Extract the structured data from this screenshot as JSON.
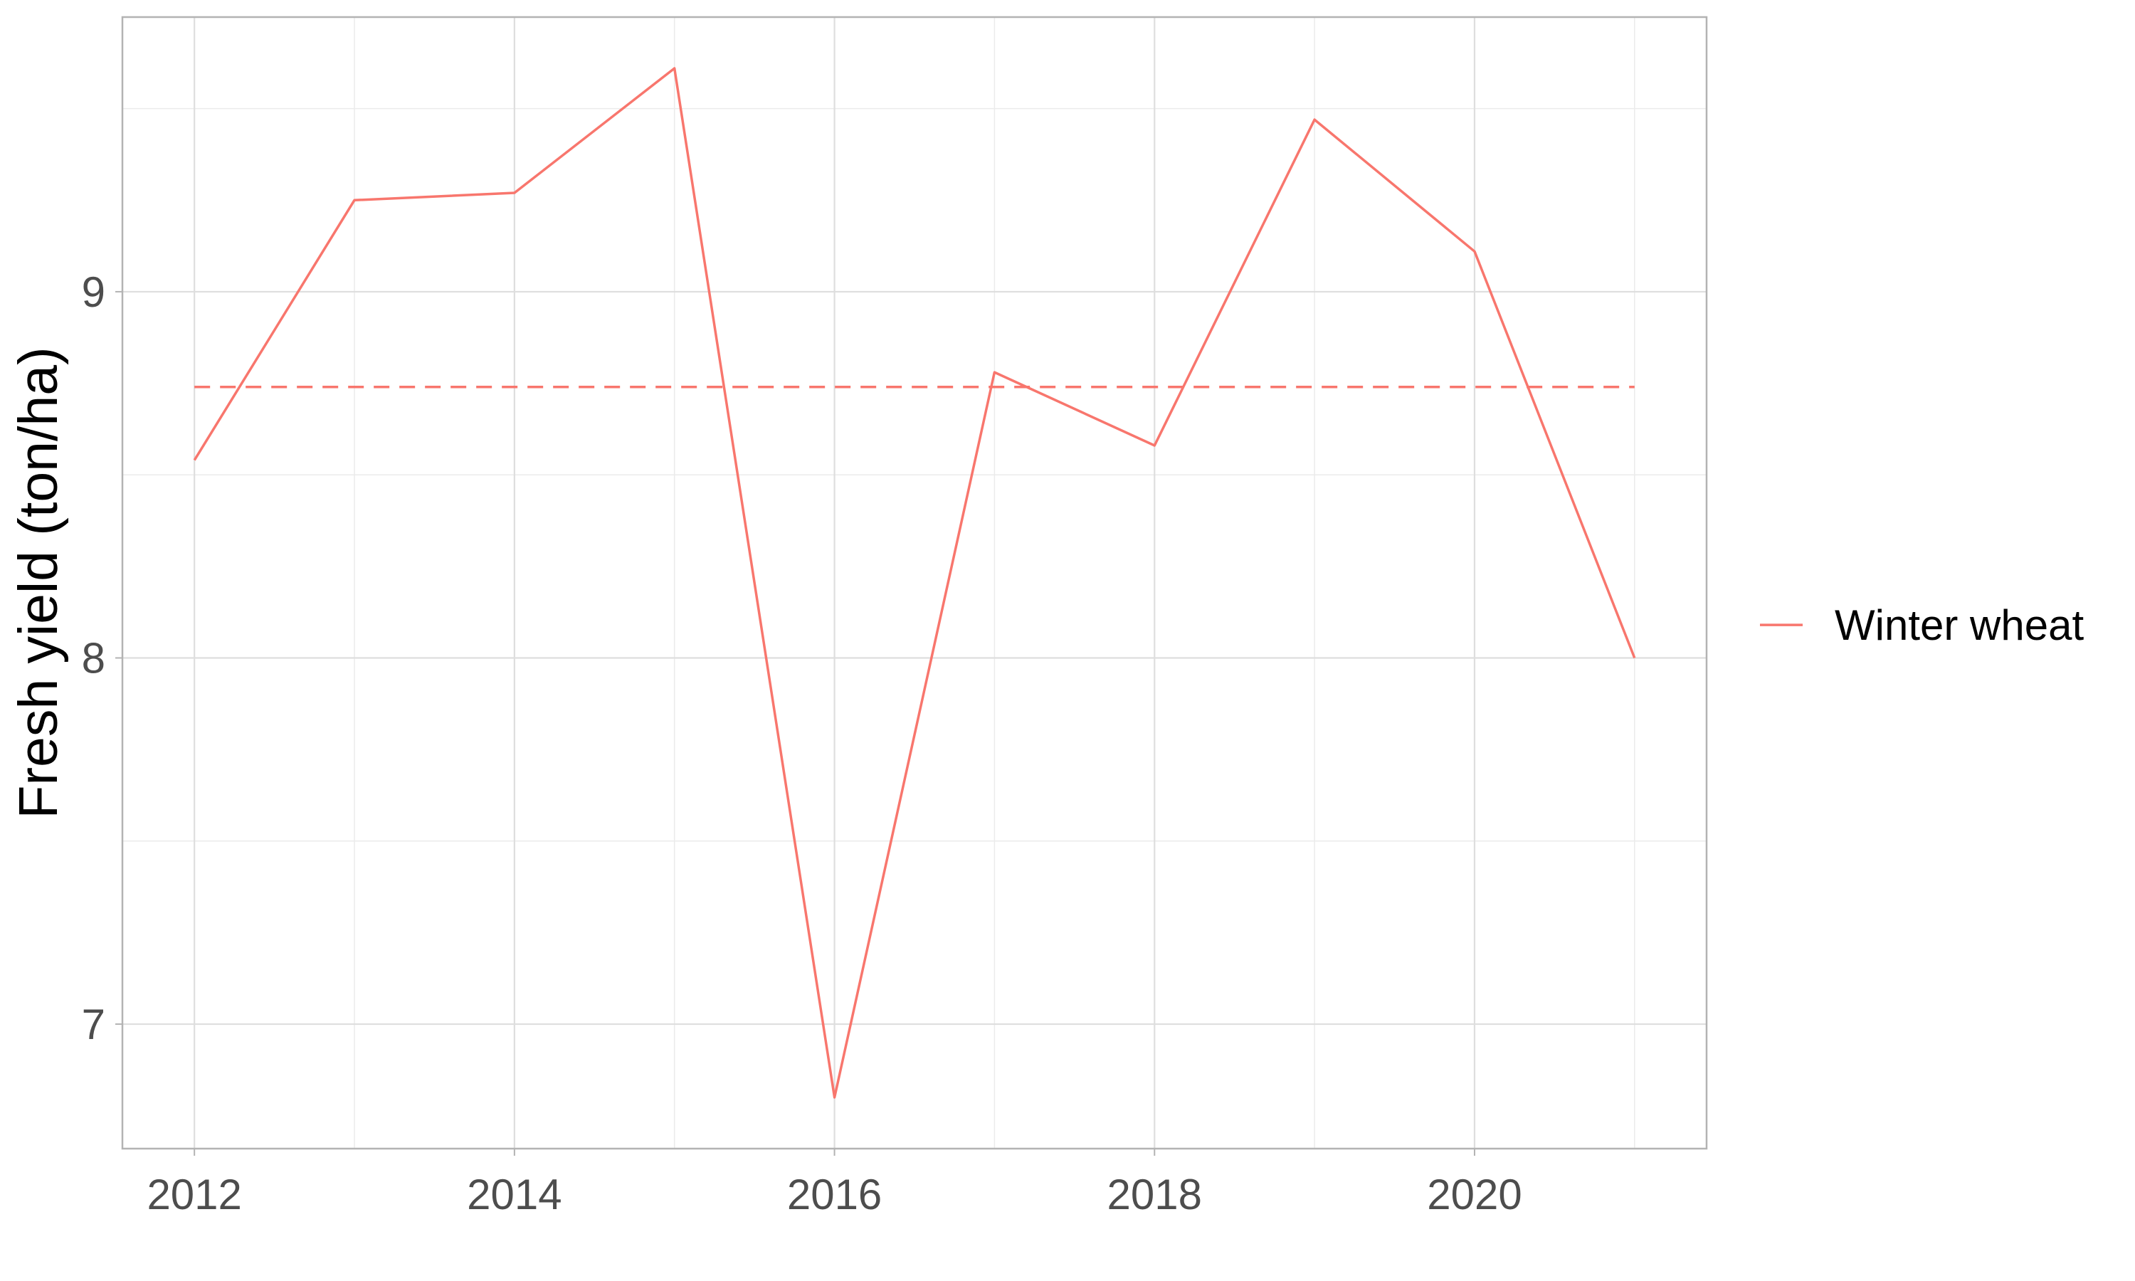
{
  "chart_data": {
    "type": "line",
    "title": "",
    "xlabel": "",
    "ylabel": "Fresh yield (ton/ha)",
    "xlim": [
      2011.55,
      2021.45
    ],
    "ylim": [
      6.66,
      9.75
    ],
    "x_ticks": [
      2012,
      2014,
      2016,
      2018,
      2020
    ],
    "x_ticks_minor": [
      2013,
      2015,
      2017,
      2019,
      2021
    ],
    "y_ticks": [
      7,
      8,
      9
    ],
    "y_ticks_minor": [
      7.5,
      8.5,
      9.5
    ],
    "x_tick_labels": [
      "2012",
      "2014",
      "2016",
      "2018",
      "2020"
    ],
    "y_tick_labels": [
      "7",
      "8",
      "9"
    ],
    "grid": true,
    "legend_position": "right",
    "series": [
      {
        "name": "Winter wheat",
        "color": "#F8766D",
        "style": "solid",
        "x": [
          2012,
          2013,
          2014,
          2015,
          2016,
          2017,
          2018,
          2019,
          2020,
          2021
        ],
        "y": [
          8.54,
          9.25,
          9.27,
          9.61,
          6.8,
          8.78,
          8.58,
          9.47,
          9.11,
          8.0
        ]
      }
    ],
    "reference_lines": [
      {
        "color": "#F8766D",
        "style": "dashed",
        "x": [
          2012,
          2021
        ],
        "y": 8.74
      }
    ]
  }
}
